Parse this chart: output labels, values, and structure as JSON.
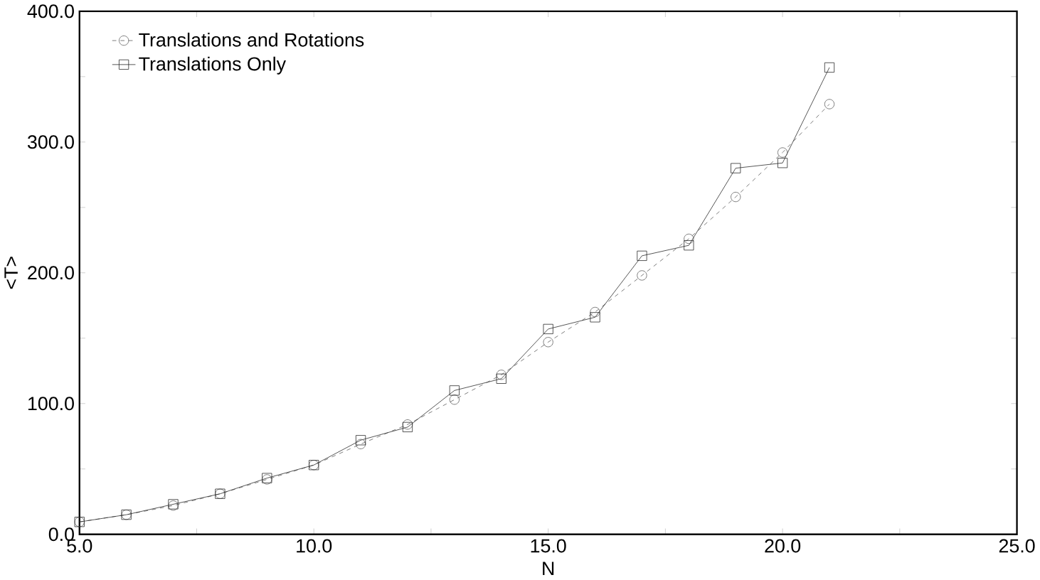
{
  "chart_data": {
    "type": "line",
    "xlabel": "N",
    "ylabel": "<T>",
    "x": [
      5,
      6,
      7,
      8,
      9,
      10,
      11,
      12,
      13,
      14,
      15,
      16,
      17,
      18,
      19,
      20,
      21
    ],
    "series": [
      {
        "name": "Translations and Rotations",
        "color": "#555555",
        "marker": "circle",
        "line_style": "dashed",
        "values": [
          9.5,
          15,
          22,
          31,
          42,
          53,
          69,
          84,
          103,
          122,
          147,
          170,
          198,
          226,
          258,
          292,
          329
        ]
      },
      {
        "name": "Translations Only",
        "color": "#222222",
        "marker": "square",
        "line_style": "solid",
        "values": [
          9.5,
          15,
          23,
          31,
          43,
          53,
          72,
          82,
          110,
          119,
          157,
          166,
          213,
          221,
          280,
          284,
          357
        ]
      }
    ],
    "xlim": [
      5,
      25
    ],
    "ylim": [
      0,
      400
    ],
    "xticks": [
      {
        "value": 5,
        "label": "5.0"
      },
      {
        "value": 7.5,
        "label": null
      },
      {
        "value": 10,
        "label": "10.0"
      },
      {
        "value": 12.5,
        "label": null
      },
      {
        "value": 15,
        "label": "15.0"
      },
      {
        "value": 17.5,
        "label": null
      },
      {
        "value": 20,
        "label": "20.0"
      },
      {
        "value": 22.5,
        "label": null
      },
      {
        "value": 25,
        "label": "25.0"
      }
    ],
    "yticks": [
      {
        "value": 0,
        "label": "0.0"
      },
      {
        "value": 50,
        "label": null
      },
      {
        "value": 100,
        "label": "100.0"
      },
      {
        "value": 150,
        "label": null
      },
      {
        "value": 200,
        "label": "200.0"
      },
      {
        "value": 250,
        "label": null
      },
      {
        "value": 300,
        "label": "300.0"
      },
      {
        "value": 350,
        "label": null
      },
      {
        "value": 400,
        "label": "400.0"
      }
    ],
    "legend": "top left"
  }
}
